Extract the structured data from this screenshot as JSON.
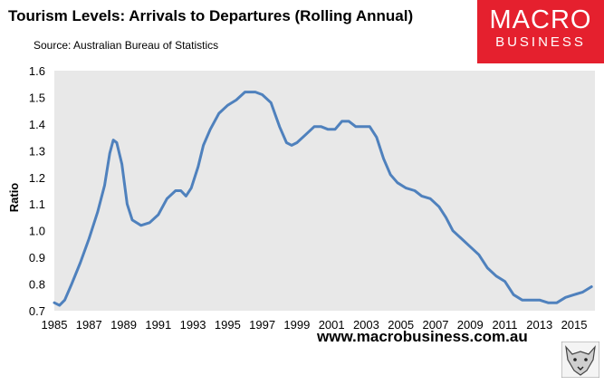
{
  "header": {
    "title": "Tourism Levels: Arrivals to Departures (Rolling Annual)",
    "source": "Source: Australian Bureau of Statistics"
  },
  "logo": {
    "line1": "MACRO",
    "line2": "BUSINESS"
  },
  "footer": {
    "website": "www.macrobusiness.com.au"
  },
  "colors": {
    "line": "#4f81bd",
    "plot_bg": "#e8e8e8",
    "logo_bg": "#e5202e"
  },
  "icons": {
    "mascot": "wolf-icon"
  },
  "chart_data": {
    "type": "line",
    "title": "Tourism Levels: Arrivals to Departures (Rolling Annual)",
    "xlabel": "",
    "ylabel": "Ratio",
    "xlim": [
      1985,
      2016.2
    ],
    "ylim": [
      0.7,
      1.6
    ],
    "yticks": [
      "0.7",
      "0.8",
      "0.9",
      "1.0",
      "1.1",
      "1.2",
      "1.3",
      "1.4",
      "1.5",
      "1.6"
    ],
    "xticks": [
      "1985",
      "1987",
      "1989",
      "1991",
      "1993",
      "1995",
      "1997",
      "1999",
      "2001",
      "2003",
      "2005",
      "2007",
      "2009",
      "2011",
      "2013",
      "2015"
    ],
    "grid": false,
    "series": [
      {
        "name": "Arrivals to Departures",
        "x": [
          1985.0,
          1985.3,
          1985.6,
          1986.0,
          1986.5,
          1987.0,
          1987.5,
          1987.9,
          1988.2,
          1988.4,
          1988.6,
          1988.9,
          1989.2,
          1989.5,
          1990.0,
          1990.5,
          1991.0,
          1991.5,
          1992.0,
          1992.3,
          1992.6,
          1992.9,
          1993.3,
          1993.6,
          1994.0,
          1994.5,
          1995.0,
          1995.5,
          1996.0,
          1996.3,
          1996.6,
          1997.0,
          1997.5,
          1998.0,
          1998.4,
          1998.7,
          1999.0,
          1999.5,
          2000.0,
          2000.4,
          2000.8,
          2001.2,
          2001.6,
          2002.0,
          2002.4,
          2002.8,
          2003.2,
          2003.6,
          2004.0,
          2004.4,
          2004.8,
          2005.3,
          2005.8,
          2006.2,
          2006.7,
          2007.2,
          2007.6,
          2008.0,
          2008.5,
          2009.0,
          2009.5,
          2010.0,
          2010.5,
          2011.0,
          2011.5,
          2012.0,
          2012.5,
          2013.0,
          2013.5,
          2014.0,
          2014.5,
          2015.0,
          2015.5,
          2016.0
        ],
        "y": [
          0.73,
          0.72,
          0.74,
          0.8,
          0.88,
          0.97,
          1.07,
          1.17,
          1.29,
          1.34,
          1.33,
          1.25,
          1.1,
          1.04,
          1.02,
          1.03,
          1.06,
          1.12,
          1.15,
          1.15,
          1.13,
          1.16,
          1.24,
          1.32,
          1.38,
          1.44,
          1.47,
          1.49,
          1.52,
          1.52,
          1.52,
          1.51,
          1.48,
          1.39,
          1.33,
          1.32,
          1.33,
          1.36,
          1.39,
          1.39,
          1.38,
          1.38,
          1.41,
          1.41,
          1.39,
          1.39,
          1.39,
          1.35,
          1.27,
          1.21,
          1.18,
          1.16,
          1.15,
          1.13,
          1.12,
          1.09,
          1.05,
          1.0,
          0.97,
          0.94,
          0.91,
          0.86,
          0.83,
          0.81,
          0.76,
          0.74,
          0.74,
          0.74,
          0.73,
          0.73,
          0.75,
          0.76,
          0.77,
          0.79
        ]
      }
    ]
  }
}
